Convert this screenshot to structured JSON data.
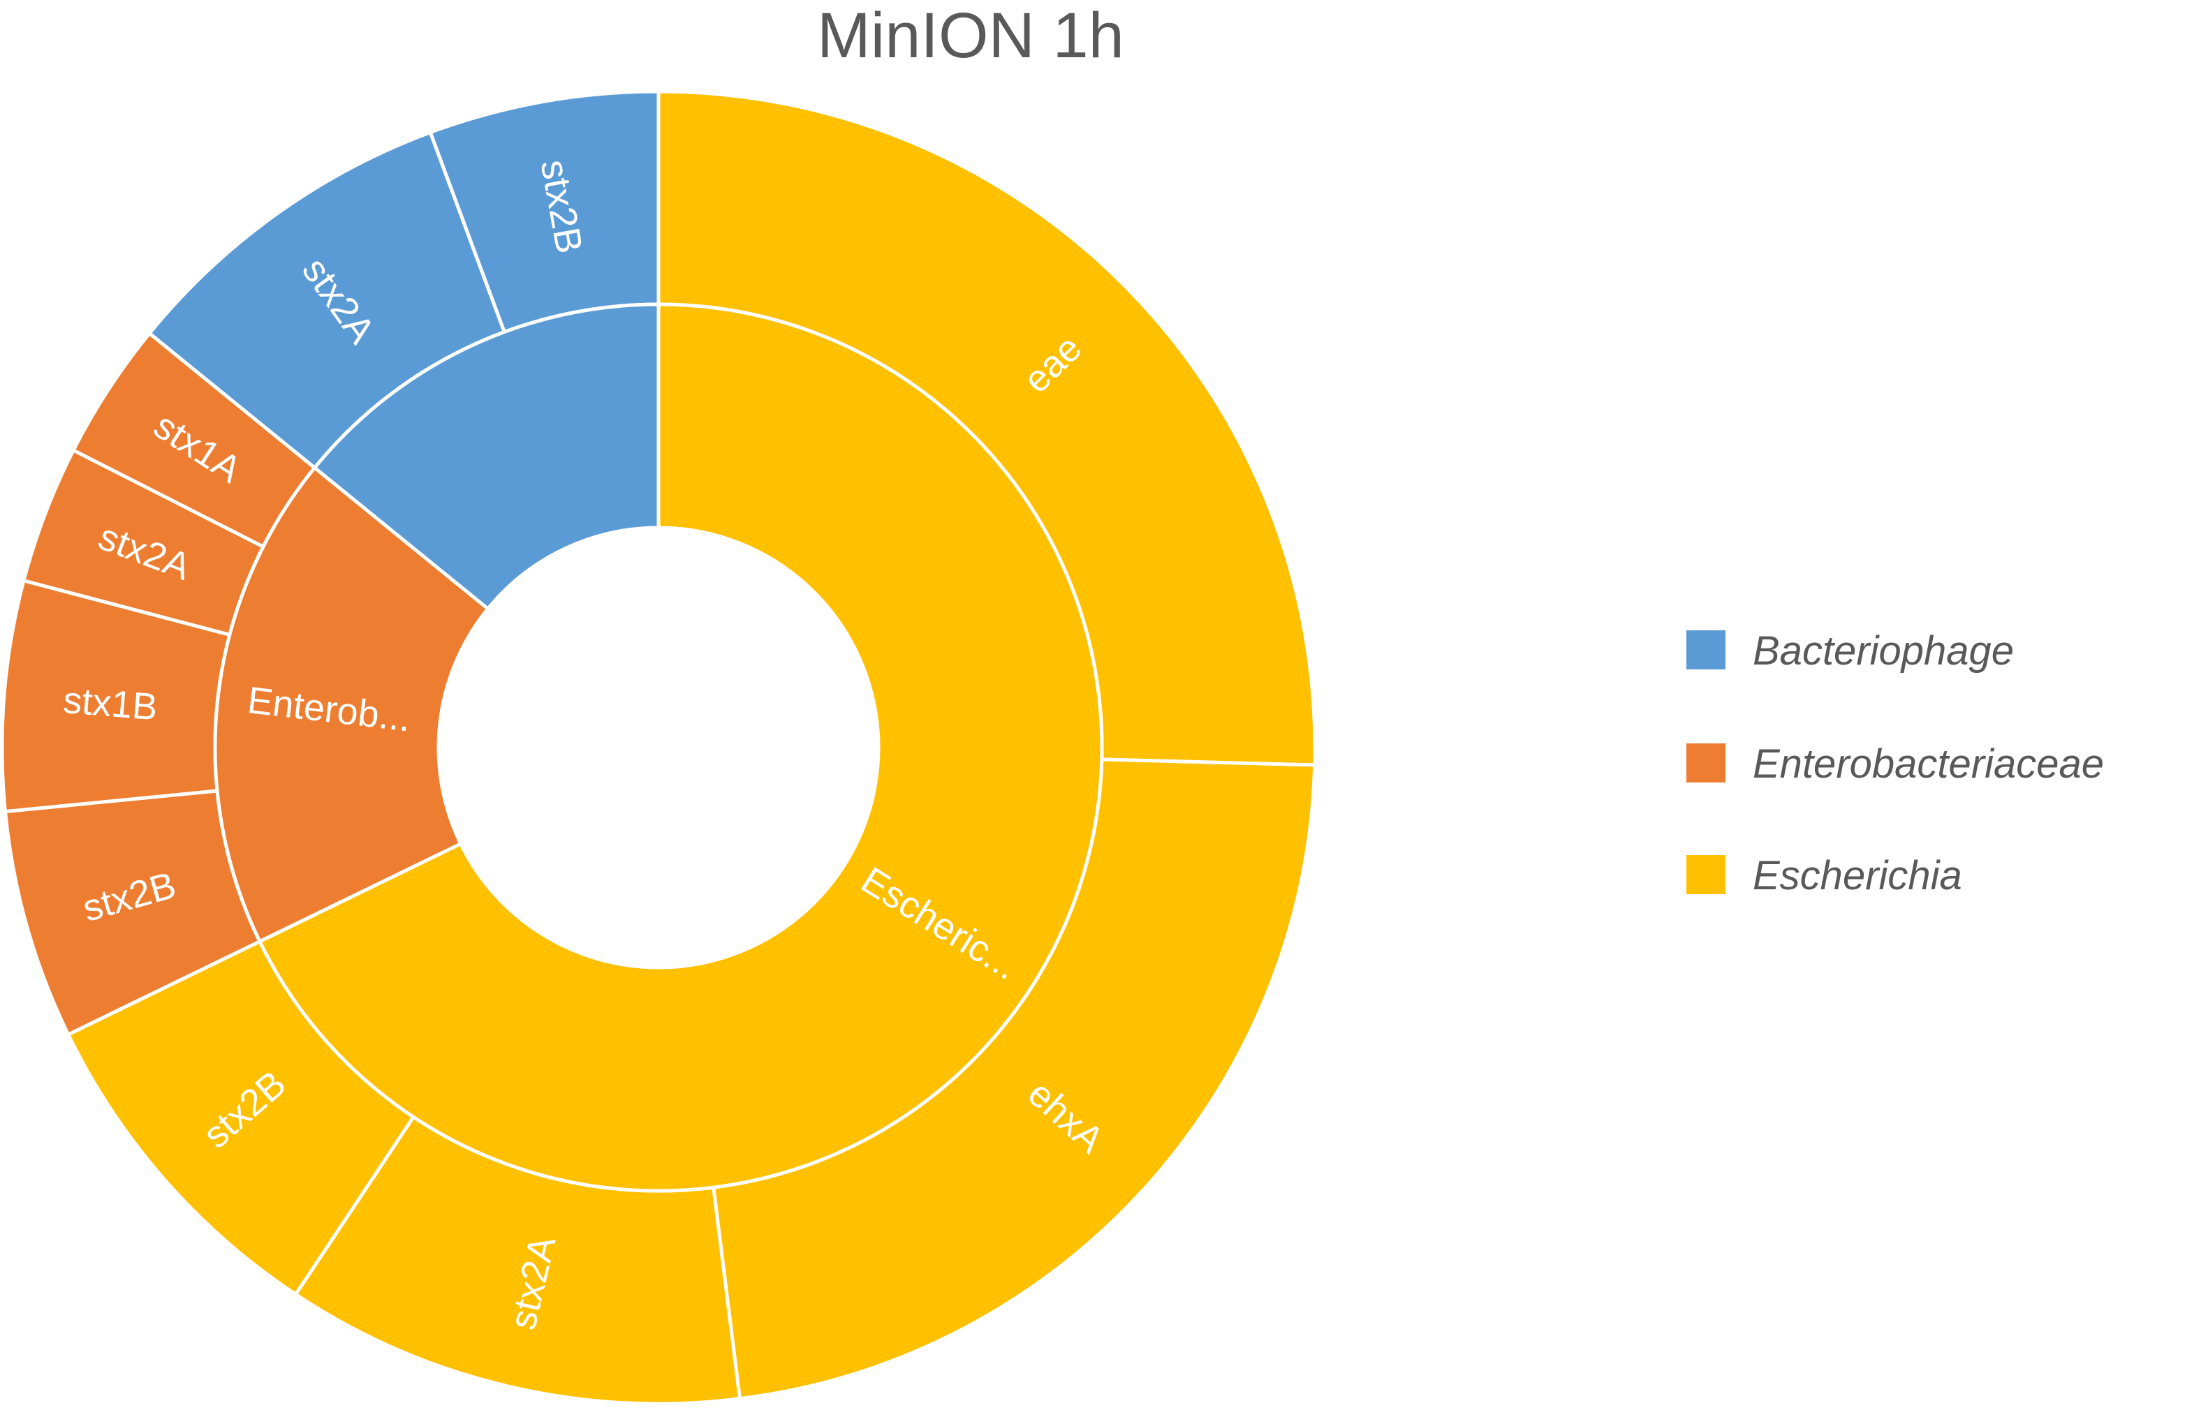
{
  "chart_data": {
    "type": "sunburst",
    "title": "MinION 1h",
    "colors": {
      "Bacteriophage": "#5B9BD5",
      "Enterobacteriaceae": "#ED7D31",
      "Escherichia": "#FFC000"
    },
    "series": [
      {
        "name": "Bacteriophage",
        "label": "",
        "children": [
          {
            "name": "stx2B",
            "value": 2
          },
          {
            "name": "stx2A",
            "value": 3
          }
        ]
      },
      {
        "name": "Enterobacteriaceae",
        "label": "Enterob...",
        "children": [
          {
            "name": "stx1A",
            "value": 1.2
          },
          {
            "name": "stx2A",
            "value": 1.2
          },
          {
            "name": "stx1B",
            "value": 2
          },
          {
            "name": "stx2B",
            "value": 2
          }
        ]
      },
      {
        "name": "Escherichia",
        "label": "Escheric...",
        "children": [
          {
            "name": "stx2B",
            "value": 3
          },
          {
            "name": "stx2A",
            "value": 4
          },
          {
            "name": "ehxA",
            "value": 8
          },
          {
            "name": "eae",
            "value": 9
          }
        ]
      }
    ],
    "legend": {
      "position": "right",
      "entries": [
        "Bacteriophage",
        "Enterobacteriaceae",
        "Escherichia"
      ]
    }
  }
}
